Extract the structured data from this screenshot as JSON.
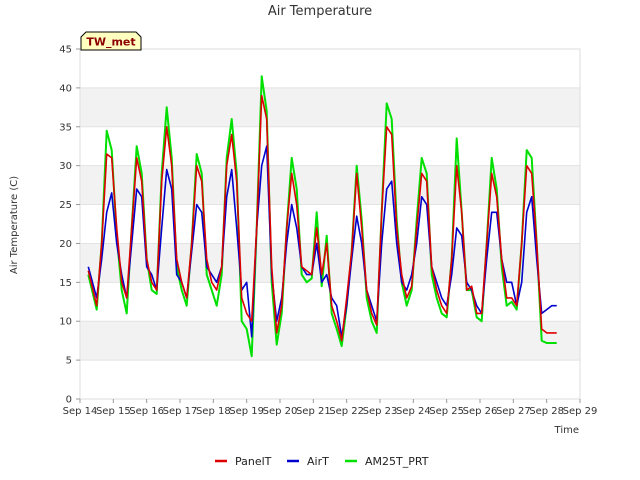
{
  "chart_data": {
    "type": "line",
    "title": "Air Temperature",
    "xlabel": "Time",
    "ylabel": "Air Temperature (C)",
    "ylim": [
      0,
      45
    ],
    "yticks": [
      0,
      5,
      10,
      15,
      20,
      25,
      30,
      35,
      40,
      45
    ],
    "xlim": [
      14,
      29
    ],
    "xtick_labels": [
      "Sep 14",
      "Sep 15",
      "Sep 16",
      "Sep 17",
      "Sep 18",
      "Sep 19",
      "Sep 20",
      "Sep 21",
      "Sep 22",
      "Sep 23",
      "Sep 24",
      "Sep 25",
      "Sep 26",
      "Sep 27",
      "Sep 28",
      "Sep 29"
    ],
    "xtick_values": [
      14,
      15,
      16,
      17,
      18,
      19,
      20,
      21,
      22,
      23,
      24,
      25,
      26,
      27,
      28,
      29
    ],
    "grid": "horizontal bands",
    "legend_position": "bottom-center",
    "badge": "TW_met",
    "series": [
      {
        "name": "PanelT",
        "color": "#dd0000",
        "x": [
          14.25,
          14.5,
          14.65,
          14.8,
          14.95,
          15.1,
          15.25,
          15.4,
          15.55,
          15.7,
          15.85,
          16.0,
          16.15,
          16.3,
          16.45,
          16.6,
          16.75,
          16.9,
          17.05,
          17.2,
          17.35,
          17.5,
          17.65,
          17.8,
          17.95,
          18.1,
          18.25,
          18.4,
          18.55,
          18.7,
          18.85,
          19.0,
          19.15,
          19.3,
          19.45,
          19.6,
          19.75,
          19.9,
          20.05,
          20.2,
          20.35,
          20.5,
          20.65,
          20.8,
          20.95,
          21.1,
          21.25,
          21.4,
          21.55,
          21.7,
          21.85,
          22.0,
          22.15,
          22.3,
          22.45,
          22.6,
          22.75,
          22.9,
          23.05,
          23.2,
          23.35,
          23.5,
          23.65,
          23.8,
          23.95,
          24.1,
          24.25,
          24.4,
          24.55,
          24.7,
          24.85,
          25.0,
          25.15,
          25.3,
          25.45,
          25.6,
          25.75,
          25.9,
          26.05,
          26.2,
          26.35,
          26.5,
          26.65,
          26.8,
          26.95,
          27.1,
          27.25,
          27.4,
          27.55,
          27.7,
          27.85,
          28.0,
          28.15,
          28.3
        ],
        "y": [
          16.5,
          12.0,
          20.0,
          31.5,
          31.0,
          22.0,
          15.0,
          13.0,
          22.0,
          31.0,
          28.0,
          18.0,
          15.0,
          14.0,
          28.0,
          35.0,
          30.0,
          18.0,
          15.0,
          13.0,
          20.0,
          30.0,
          28.0,
          18.0,
          15.0,
          14.0,
          17.0,
          30.0,
          34.0,
          28.0,
          13.0,
          11.0,
          10.0,
          22.0,
          39.0,
          36.0,
          17.0,
          8.5,
          12.0,
          22.0,
          29.0,
          25.0,
          17.0,
          16.5,
          16.0,
          22.0,
          16.0,
          20.0,
          12.0,
          10.0,
          7.5,
          13.0,
          19.0,
          29.0,
          22.0,
          14.0,
          11.0,
          9.5,
          24.0,
          35.0,
          34.0,
          22.0,
          16.0,
          13.0,
          14.5,
          22.0,
          29.0,
          28.0,
          17.0,
          14.0,
          12.0,
          11.0,
          18.0,
          30.0,
          24.0,
          14.0,
          14.5,
          11.0,
          11.0,
          20.0,
          29.0,
          26.0,
          18.0,
          13.0,
          13.0,
          12.0,
          20.0,
          30.0,
          29.0,
          20.0,
          9.0,
          8.5,
          8.5,
          8.5
        ]
      },
      {
        "name": "AirT",
        "color": "#0000cc",
        "x": [
          14.25,
          14.5,
          14.65,
          14.8,
          14.95,
          15.1,
          15.25,
          15.4,
          15.55,
          15.7,
          15.85,
          16.0,
          16.15,
          16.3,
          16.45,
          16.6,
          16.75,
          16.9,
          17.05,
          17.2,
          17.35,
          17.5,
          17.65,
          17.8,
          17.95,
          18.1,
          18.25,
          18.4,
          18.55,
          18.7,
          18.85,
          19.0,
          19.15,
          19.3,
          19.45,
          19.6,
          19.75,
          19.9,
          20.05,
          20.2,
          20.35,
          20.5,
          20.65,
          20.8,
          20.95,
          21.1,
          21.25,
          21.4,
          21.55,
          21.7,
          21.85,
          22.0,
          22.15,
          22.3,
          22.45,
          22.6,
          22.75,
          22.9,
          23.05,
          23.2,
          23.35,
          23.5,
          23.65,
          23.8,
          23.95,
          24.1,
          24.25,
          24.4,
          24.55,
          24.7,
          24.85,
          25.0,
          25.15,
          25.3,
          25.45,
          25.6,
          25.75,
          25.9,
          26.05,
          26.2,
          26.35,
          26.5,
          26.65,
          26.8,
          26.95,
          27.1,
          27.25,
          27.4,
          27.55,
          27.7,
          27.85,
          28.0,
          28.15,
          28.3
        ],
        "y": [
          17.0,
          13.0,
          18.0,
          24.0,
          26.5,
          20.0,
          16.0,
          13.0,
          20.0,
          27.0,
          26.0,
          17.0,
          16.0,
          14.0,
          22.0,
          29.5,
          27.0,
          16.0,
          15.0,
          13.0,
          19.0,
          25.0,
          24.0,
          17.0,
          16.0,
          15.0,
          17.0,
          26.0,
          29.5,
          22.0,
          14.0,
          15.0,
          8.0,
          22.0,
          30.0,
          32.5,
          16.0,
          10.0,
          13.0,
          20.0,
          25.0,
          22.0,
          17.0,
          16.0,
          16.0,
          20.0,
          15.0,
          16.0,
          13.0,
          12.0,
          8.0,
          12.0,
          18.0,
          23.5,
          20.0,
          14.0,
          12.0,
          10.0,
          20.0,
          27.0,
          28.0,
          20.0,
          15.0,
          14.0,
          16.0,
          20.0,
          26.0,
          25.0,
          17.0,
          15.0,
          13.0,
          12.0,
          16.0,
          22.0,
          21.0,
          15.0,
          14.0,
          12.0,
          11.0,
          18.0,
          24.0,
          24.0,
          18.0,
          15.0,
          15.0,
          12.0,
          15.0,
          24.0,
          26.0,
          18.0,
          11.0,
          11.5,
          12.0,
          12.0
        ]
      },
      {
        "name": "AM25T_PRT",
        "color": "#00e000",
        "x": [
          14.25,
          14.5,
          14.65,
          14.8,
          14.95,
          15.1,
          15.25,
          15.4,
          15.55,
          15.7,
          15.85,
          16.0,
          16.15,
          16.3,
          16.45,
          16.6,
          16.75,
          16.9,
          17.05,
          17.2,
          17.35,
          17.5,
          17.65,
          17.8,
          17.95,
          18.1,
          18.25,
          18.4,
          18.55,
          18.7,
          18.85,
          19.0,
          19.15,
          19.3,
          19.45,
          19.6,
          19.75,
          19.9,
          20.05,
          20.2,
          20.35,
          20.5,
          20.65,
          20.8,
          20.95,
          21.1,
          21.25,
          21.4,
          21.55,
          21.7,
          21.85,
          22.0,
          22.15,
          22.3,
          22.45,
          22.6,
          22.75,
          22.9,
          23.05,
          23.2,
          23.35,
          23.5,
          23.65,
          23.8,
          23.95,
          24.1,
          24.25,
          24.4,
          24.55,
          24.7,
          24.85,
          25.0,
          25.15,
          25.3,
          25.45,
          25.6,
          25.75,
          25.9,
          26.05,
          26.2,
          26.35,
          26.5,
          26.65,
          26.8,
          26.95,
          27.1,
          27.25,
          27.4,
          27.55,
          27.7,
          27.85,
          28.0,
          28.15,
          28.3
        ],
        "y": [
          16.0,
          11.5,
          20.0,
          34.5,
          32.0,
          21.0,
          14.0,
          11.0,
          22.0,
          32.5,
          29.0,
          18.0,
          14.0,
          13.5,
          29.0,
          37.5,
          31.0,
          17.0,
          14.0,
          12.0,
          20.0,
          31.5,
          29.0,
          16.0,
          14.0,
          12.0,
          16.0,
          31.0,
          36.0,
          29.0,
          10.0,
          9.0,
          5.5,
          22.0,
          41.5,
          37.0,
          15.0,
          7.0,
          11.0,
          22.0,
          31.0,
          27.0,
          16.0,
          15.0,
          15.5,
          24.0,
          14.5,
          21.0,
          11.0,
          9.0,
          6.8,
          12.0,
          19.0,
          30.0,
          23.0,
          13.0,
          10.0,
          8.5,
          24.0,
          38.0,
          36.0,
          23.0,
          15.0,
          12.0,
          14.0,
          23.0,
          31.0,
          29.0,
          16.0,
          13.0,
          11.0,
          10.5,
          18.0,
          33.5,
          24.0,
          14.0,
          14.0,
          10.5,
          10.0,
          20.0,
          31.0,
          27.0,
          17.0,
          12.0,
          12.5,
          11.5,
          20.0,
          32.0,
          31.0,
          20.0,
          7.5,
          7.2,
          7.2,
          7.2
        ]
      }
    ]
  }
}
